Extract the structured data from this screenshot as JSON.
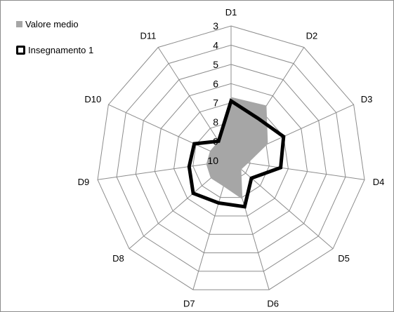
{
  "chart_data": {
    "type": "radar",
    "title": "",
    "axes": [
      "D1",
      "D2",
      "D3",
      "D4",
      "D5",
      "D6",
      "D7",
      "D8",
      "D9",
      "D10",
      "D11"
    ],
    "ticks": [
      3,
      4,
      5,
      6,
      7,
      8,
      9,
      10
    ],
    "r_range": [
      10,
      3
    ],
    "reversed": true,
    "grid": true,
    "legend_position": "top-left",
    "series": [
      {
        "name": "Valore medio",
        "style": "area",
        "color": "#a6a6a6",
        "values": [
          6.7,
          6.6,
          7.9,
          9.1,
          9.3,
          7.9,
          8.6,
          8.6,
          8.7,
          8.8,
          8.8
        ]
      },
      {
        "name": "Insegnamento 1",
        "style": "line",
        "color": "#000000",
        "values": [
          6.9,
          7.4,
          7.0,
          7.4,
          8.6,
          7.5,
          7.7,
          7.4,
          7.8,
          7.9,
          8.8
        ]
      }
    ]
  }
}
